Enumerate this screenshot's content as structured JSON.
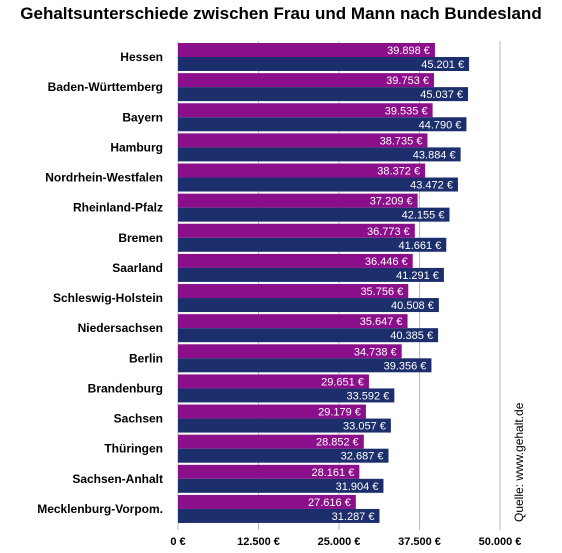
{
  "chart_data": {
    "type": "bar",
    "orientation": "horizontal",
    "title": "Gehaltsunterschiede zwischen Frau und Mann nach Bundesland",
    "categories": [
      "Hessen",
      "Baden-Württemberg",
      "Bayern",
      "Hamburg",
      "Nordrhein-Westfalen",
      "Rheinland-Pfalz",
      "Bremen",
      "Saarland",
      "Schleswig-Holstein",
      "Niedersachsen",
      "Berlin",
      "Brandenburg",
      "Sachsen",
      "Thüringen",
      "Sachsen-Anhalt",
      "Mecklenburg-Vorpom."
    ],
    "series": [
      {
        "color": "#8b0e8b",
        "values": [
          39898,
          39753,
          39535,
          38735,
          38372,
          37209,
          36773,
          36446,
          35756,
          35647,
          34738,
          29651,
          29179,
          28852,
          28161,
          27616
        ],
        "value_labels": [
          "39.898 €",
          "39.753 €",
          "39.535 €",
          "38.735 €",
          "38.372 €",
          "37.209 €",
          "36.773 €",
          "36.446 €",
          "35.756 €",
          "35.647 €",
          "34.738 €",
          "29.651 €",
          "29.179 €",
          "28.852 €",
          "28.161 €",
          "27.616 €"
        ]
      },
      {
        "color": "#1c2e6b",
        "values": [
          45201,
          45037,
          44790,
          43884,
          43472,
          42155,
          41661,
          41291,
          40508,
          40385,
          39356,
          33592,
          33057,
          32687,
          31904,
          31287
        ],
        "value_labels": [
          "45.201 €",
          "45.037 €",
          "44.790 €",
          "43.884 €",
          "43.472 €",
          "42.155 €",
          "41.661 €",
          "41.291 €",
          "40.508 €",
          "40.385 €",
          "39.356 €",
          "33.592 €",
          "33.057 €",
          "32.687 €",
          "31.904 €",
          "31.287 €"
        ]
      }
    ],
    "xlim": [
      0,
      50000
    ],
    "x_ticks": [
      0,
      12500,
      25000,
      37500,
      50000
    ],
    "x_tick_labels": [
      "0 €",
      "12.500 €",
      "25.000 €",
      "37.500 €",
      "50.000 €"
    ],
    "grid": true,
    "source": "Quelle: www.gehalt.de"
  }
}
